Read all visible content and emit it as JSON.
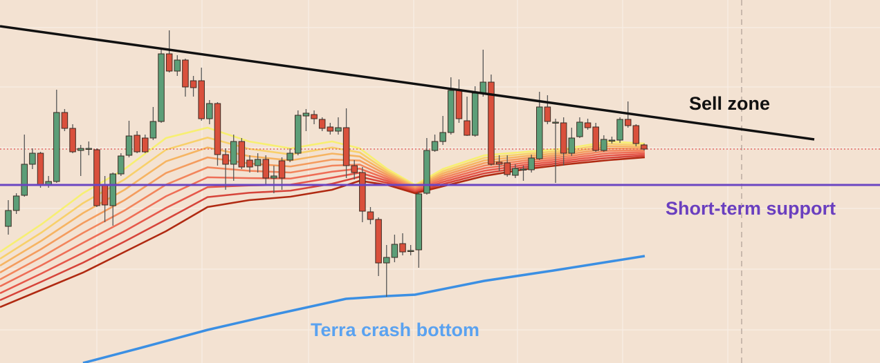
{
  "chart_data": {
    "type": "candlestick",
    "annotations": [
      "Sell zone",
      "Short-term support",
      "Terra crash bottom"
    ],
    "open": [
      198,
      221,
      243,
      288,
      304,
      258,
      263,
      363,
      340,
      308,
      311,
      309,
      258,
      228,
      274,
      301,
      330,
      326,
      326,
      350,
      448,
      423,
      439,
      409,
      409,
      354,
      376,
      302,
      288,
      321,
      294,
      286,
      295,
      268,
      293,
      294,
      304,
      358,
      360,
      353,
      342,
      336,
      341,
      286,
      276,
      219,
      208,
      145,
      153,
      173,
      163,
      164,
      246,
      308,
      321,
      334,
      395,
      351,
      330,
      391,
      407,
      291,
      290,
      272,
      281,
      280,
      296,
      371,
      349,
      348,
      304,
      328,
      348,
      342,
      308,
      323,
      323,
      353,
      344,
      316
    ],
    "high": [
      236,
      246,
      331,
      311,
      306,
      271,
      396,
      368,
      346,
      316,
      321,
      311,
      271,
      276,
      304,
      351,
      336,
      331,
      371,
      454,
      482,
      446,
      441,
      416,
      428,
      381,
      378,
      311,
      331,
      326,
      301,
      304,
      301,
      286,
      298,
      311,
      366,
      368,
      366,
      356,
      348,
      356,
      369,
      294,
      284,
      226,
      211,
      171,
      186,
      188,
      171,
      248,
      326,
      331,
      358,
      414,
      411,
      386,
      401,
      454,
      418,
      301,
      301,
      288,
      286,
      302,
      393,
      388,
      354,
      356,
      341,
      356,
      354,
      348,
      330,
      328,
      356,
      379,
      346,
      318
    ],
    "low": [
      186,
      216,
      241,
      281,
      254,
      254,
      261,
      336,
      304,
      271,
      301,
      226,
      204,
      199,
      271,
      298,
      304,
      304,
      323,
      348,
      421,
      416,
      386,
      386,
      351,
      346,
      286,
      251,
      264,
      281,
      276,
      276,
      258,
      246,
      251,
      291,
      301,
      336,
      346,
      336,
      331,
      331,
      268,
      266,
      204,
      201,
      126,
      96,
      146,
      156,
      156,
      138,
      244,
      306,
      316,
      331,
      348,
      329,
      328,
      386,
      286,
      278,
      270,
      268,
      264,
      276,
      294,
      346,
      261,
      286,
      300,
      326,
      338,
      306,
      306,
      318,
      319,
      341,
      314,
      308
    ],
    "close": [
      221,
      242,
      288,
      304,
      258,
      263,
      363,
      340,
      306,
      311,
      311,
      228,
      229,
      274,
      300,
      329,
      306,
      306,
      350,
      448,
      423,
      439,
      400,
      399,
      354,
      376,
      302,
      288,
      321,
      284,
      284,
      295,
      268,
      271,
      268,
      304,
      359,
      362,
      354,
      340,
      336,
      341,
      286,
      276,
      220,
      208,
      145,
      153,
      172,
      161,
      163,
      245,
      308,
      321,
      334,
      395,
      354,
      330,
      391,
      407,
      288,
      288,
      273,
      282,
      281,
      297,
      371,
      350,
      349,
      304,
      326,
      349,
      341,
      308,
      324,
      323,
      353,
      344,
      318,
      310
    ],
    "up_color": "#5c9e78",
    "down_color": "#d9503c",
    "ylim": [
      0,
      526
    ]
  }
}
